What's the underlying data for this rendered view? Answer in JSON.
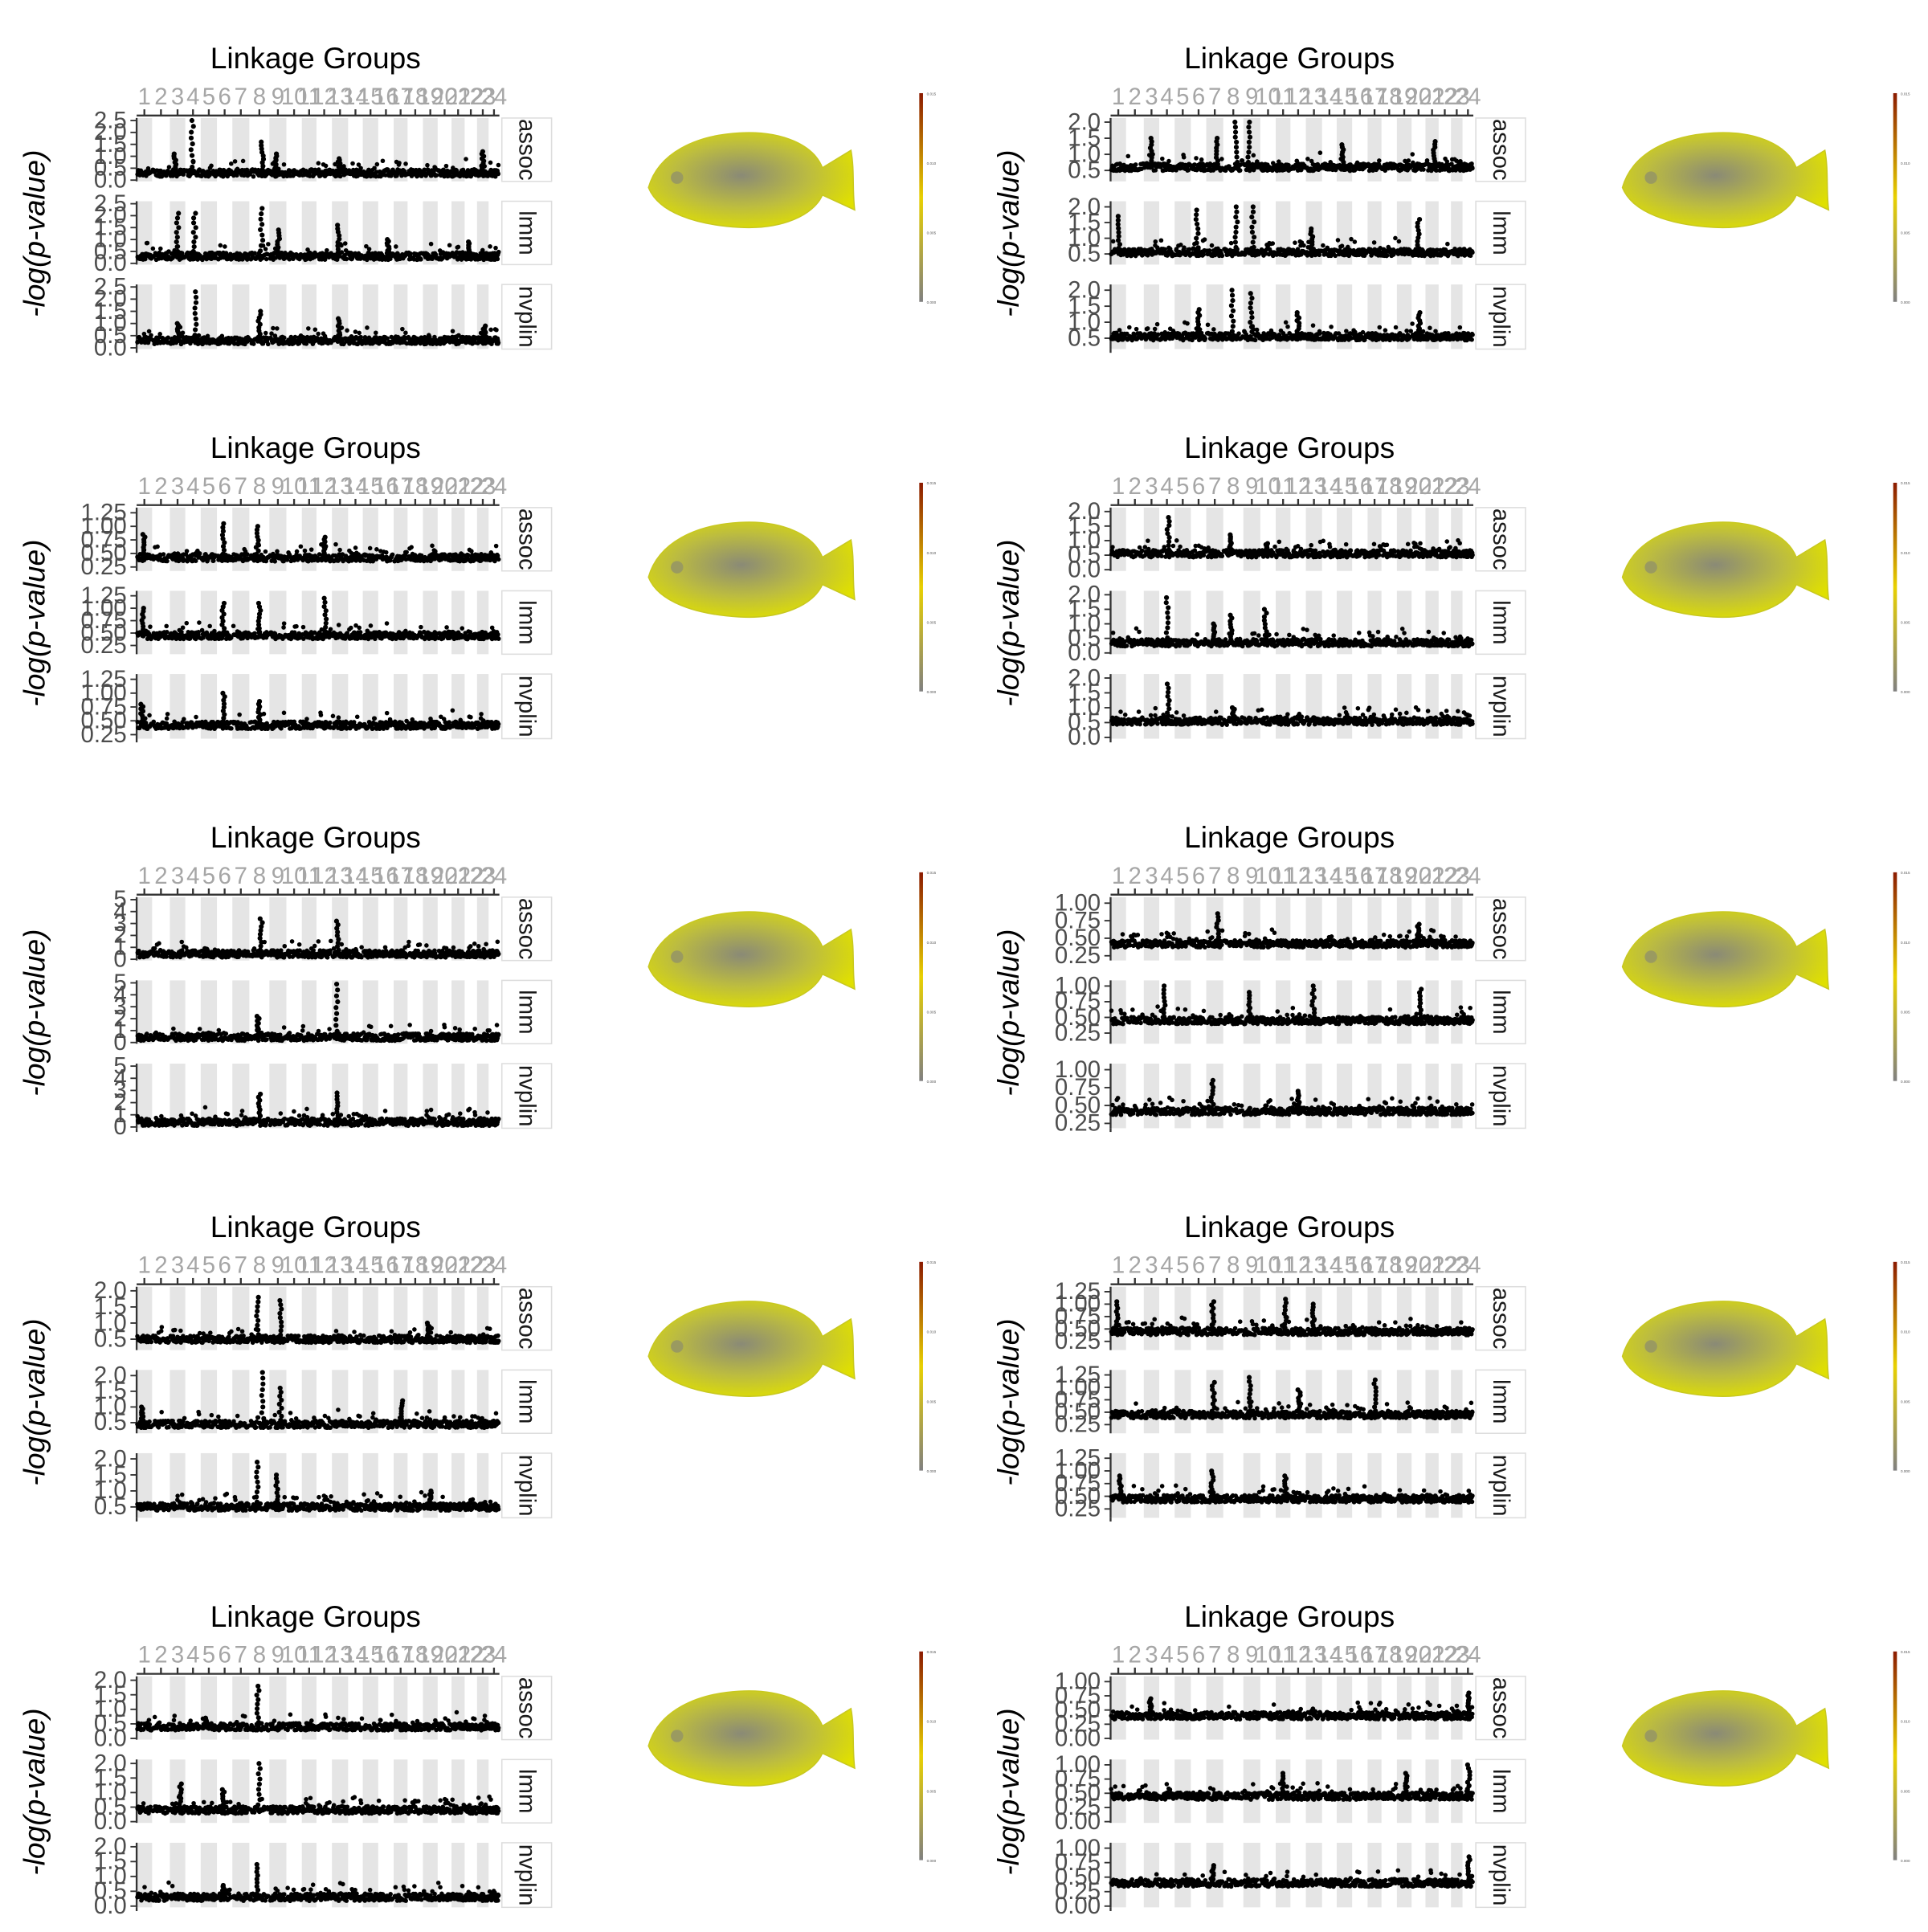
{
  "figure": {
    "x_title": "Linkage Groups",
    "y_title": "-log(p-value)",
    "linkage_groups": [
      "1",
      "2",
      "3",
      "4",
      "5",
      "6",
      "7",
      "8",
      "9",
      "10",
      "11",
      "12",
      "13",
      "14",
      "15",
      "16",
      "17",
      "18",
      "19",
      "20",
      "21",
      "22",
      "23",
      "24"
    ],
    "facets": [
      "assoc",
      "lmm",
      "nvplin"
    ]
  },
  "colors": {
    "points": "#000000",
    "stripe": "#e5e5e5",
    "tick_label": "#a6a6a6",
    "axis_text": "#4d4d4d",
    "fish_yellow": "#e0e000",
    "fish_gray": "#8a8a76",
    "scale_low": "#808080",
    "scale_mid": "#e8d000",
    "scale_high": "#8b1a00"
  },
  "colorbar_ticks": [
    "0.015",
    "0.010",
    "0.005",
    "0.000"
  ],
  "chart_data": [
    {
      "type": "scatter",
      "panel": "1",
      "facets": [
        {
          "name": "assoc",
          "ylim": [
            0,
            2.5
          ],
          "yticks": [
            "0.0",
            "0.5",
            "1.0",
            "1.5",
            "2.0",
            "2.5"
          ],
          "baseline": 0.3,
          "peaks": [
            {
              "lg": 4,
              "max": 2.5
            },
            {
              "lg": 8,
              "max": 1.6
            },
            {
              "lg": 13,
              "max": 0.9
            },
            {
              "lg": 3,
              "max": 1.1
            },
            {
              "lg": 9,
              "max": 1.1
            },
            {
              "lg": 23,
              "max": 1.2
            }
          ]
        },
        {
          "name": "lmm",
          "ylim": [
            0,
            2.5
          ],
          "yticks": [
            "0.0",
            "0.5",
            "1.0",
            "1.5",
            "2.0",
            "2.5"
          ],
          "baseline": 0.3,
          "peaks": [
            {
              "lg": 3,
              "max": 2.1
            },
            {
              "lg": 4,
              "max": 2.1
            },
            {
              "lg": 8,
              "max": 2.3
            },
            {
              "lg": 9,
              "max": 1.4
            },
            {
              "lg": 13,
              "max": 1.6
            },
            {
              "lg": 16,
              "max": 1.0
            },
            {
              "lg": 22,
              "max": 0.9
            }
          ]
        },
        {
          "name": "nvplin",
          "ylim": [
            0,
            2.5
          ],
          "yticks": [
            "0.0",
            "0.5",
            "1.0",
            "1.5",
            "2.0",
            "2.5"
          ],
          "baseline": 0.3,
          "peaks": [
            {
              "lg": 4,
              "max": 2.3
            },
            {
              "lg": 8,
              "max": 1.5
            },
            {
              "lg": 13,
              "max": 1.2
            },
            {
              "lg": 3,
              "max": 1.0
            },
            {
              "lg": 23,
              "max": 0.9
            }
          ]
        }
      ]
    },
    {
      "type": "scatter",
      "panel": "2",
      "facets": [
        {
          "name": "assoc",
          "ylim": [
            0.2,
            2.05
          ],
          "yticks": [
            "0.5",
            "1.0",
            "1.5",
            "2.0"
          ],
          "baseline": 0.6,
          "peaks": [
            {
              "lg": 8,
              "max": 2.0
            },
            {
              "lg": 9,
              "max": 2.0
            },
            {
              "lg": 3,
              "max": 1.5
            },
            {
              "lg": 7,
              "max": 1.5
            },
            {
              "lg": 15,
              "max": 1.3
            },
            {
              "lg": 21,
              "max": 1.4
            }
          ]
        },
        {
          "name": "lmm",
          "ylim": [
            0.2,
            2.1
          ],
          "yticks": [
            "0.5",
            "1.0",
            "1.5",
            "2.0"
          ],
          "baseline": 0.55,
          "peaks": [
            {
              "lg": 8,
              "max": 2.0
            },
            {
              "lg": 9,
              "max": 2.0
            },
            {
              "lg": 1,
              "max": 1.7
            },
            {
              "lg": 6,
              "max": 1.9
            },
            {
              "lg": 20,
              "max": 1.6
            },
            {
              "lg": 13,
              "max": 1.3
            }
          ]
        },
        {
          "name": "nvplin",
          "ylim": [
            0.2,
            2.1
          ],
          "yticks": [
            "0.5",
            "1.0",
            "1.5",
            "2.0"
          ],
          "baseline": 0.55,
          "peaks": [
            {
              "lg": 8,
              "max": 2.0
            },
            {
              "lg": 9,
              "max": 1.9
            },
            {
              "lg": 6,
              "max": 1.4
            },
            {
              "lg": 12,
              "max": 1.3
            },
            {
              "lg": 20,
              "max": 1.3
            }
          ]
        }
      ]
    },
    {
      "type": "scatter",
      "panel": "3",
      "facets": [
        {
          "name": "assoc",
          "ylim": [
            0.2,
            1.3
          ],
          "yticks": [
            "0.25",
            "0.50",
            "0.75",
            "1.00",
            "1.25"
          ],
          "baseline": 0.42,
          "peaks": [
            {
              "lg": 6,
              "max": 1.05
            },
            {
              "lg": 8,
              "max": 1.0
            },
            {
              "lg": 12,
              "max": 0.8
            },
            {
              "lg": 1,
              "max": 0.85
            }
          ]
        },
        {
          "name": "lmm",
          "ylim": [
            0.1,
            1.3
          ],
          "yticks": [
            "0.25",
            "0.50",
            "0.75",
            "1.00",
            "1.25"
          ],
          "baseline": 0.45,
          "peaks": [
            {
              "lg": 6,
              "max": 1.1
            },
            {
              "lg": 8,
              "max": 1.1
            },
            {
              "lg": 12,
              "max": 1.2
            },
            {
              "lg": 1,
              "max": 1.0
            }
          ]
        },
        {
          "name": "nvplin",
          "ylim": [
            0.2,
            1.3
          ],
          "yticks": [
            "0.25",
            "0.50",
            "0.75",
            "1.00",
            "1.25"
          ],
          "baseline": 0.42,
          "peaks": [
            {
              "lg": 6,
              "max": 1.0
            },
            {
              "lg": 8,
              "max": 0.85
            },
            {
              "lg": 1,
              "max": 0.8
            }
          ]
        }
      ]
    },
    {
      "type": "scatter",
      "panel": "4",
      "facets": [
        {
          "name": "assoc",
          "ylim": [
            0,
            2.05
          ],
          "yticks": [
            "0.0",
            "0.5",
            "1.0",
            "1.5",
            "2.0"
          ],
          "baseline": 0.55,
          "peaks": [
            {
              "lg": 4,
              "max": 1.8
            },
            {
              "lg": 8,
              "max": 1.2
            },
            {
              "lg": 10,
              "max": 0.9
            }
          ]
        },
        {
          "name": "lmm",
          "ylim": [
            0,
            2.05
          ],
          "yticks": [
            "0.0",
            "0.5",
            "1.0",
            "1.5",
            "2.0"
          ],
          "baseline": 0.35,
          "peaks": [
            {
              "lg": 4,
              "max": 1.9
            },
            {
              "lg": 8,
              "max": 1.3
            },
            {
              "lg": 10,
              "max": 1.5
            },
            {
              "lg": 7,
              "max": 1.0
            }
          ]
        },
        {
          "name": "nvplin",
          "ylim": [
            0,
            2.05
          ],
          "yticks": [
            "0.0",
            "0.5",
            "1.0",
            "1.5",
            "2.0"
          ],
          "baseline": 0.55,
          "peaks": [
            {
              "lg": 4,
              "max": 1.8
            },
            {
              "lg": 8,
              "max": 1.0
            }
          ]
        }
      ]
    },
    {
      "type": "scatter",
      "panel": "5",
      "facets": [
        {
          "name": "assoc",
          "ylim": [
            0,
            5
          ],
          "yticks": [
            "0",
            "1",
            "2",
            "3",
            "4",
            "5"
          ],
          "baseline": 0.45,
          "peaks": [
            {
              "lg": 13,
              "max": 3.2
            },
            {
              "lg": 8,
              "max": 3.4
            },
            {
              "lg": 5,
              "max": 0.9
            }
          ]
        },
        {
          "name": "lmm",
          "ylim": [
            0,
            5
          ],
          "yticks": [
            "0",
            "1",
            "2",
            "3",
            "4",
            "5"
          ],
          "baseline": 0.45,
          "peaks": [
            {
              "lg": 13,
              "max": 4.9
            },
            {
              "lg": 8,
              "max": 2.2
            },
            {
              "lg": 5,
              "max": 0.8
            }
          ]
        },
        {
          "name": "nvplin",
          "ylim": [
            0,
            5
          ],
          "yticks": [
            "0",
            "1",
            "2",
            "3",
            "4",
            "5"
          ],
          "baseline": 0.4,
          "peaks": [
            {
              "lg": 13,
              "max": 2.8
            },
            {
              "lg": 8,
              "max": 2.7
            }
          ]
        }
      ]
    },
    {
      "type": "scatter",
      "panel": "6",
      "facets": [
        {
          "name": "assoc",
          "ylim": [
            0.2,
            1.05
          ],
          "yticks": [
            "0.25",
            "0.50",
            "0.75",
            "1.00"
          ],
          "baseline": 0.42,
          "peaks": [
            {
              "lg": 7,
              "max": 0.85
            },
            {
              "lg": 20,
              "max": 0.7
            }
          ]
        },
        {
          "name": "lmm",
          "ylim": [
            0.1,
            1.05
          ],
          "yticks": [
            "0.25",
            "0.50",
            "0.75",
            "1.00"
          ],
          "baseline": 0.45,
          "peaks": [
            {
              "lg": 4,
              "max": 1.0
            },
            {
              "lg": 13,
              "max": 1.0
            },
            {
              "lg": 20,
              "max": 0.95
            },
            {
              "lg": 9,
              "max": 0.9
            }
          ]
        },
        {
          "name": "nvplin",
          "ylim": [
            0.2,
            1.05
          ],
          "yticks": [
            "0.25",
            "0.50",
            "0.75",
            "1.00"
          ],
          "baseline": 0.42,
          "peaks": [
            {
              "lg": 7,
              "max": 0.85
            },
            {
              "lg": 12,
              "max": 0.7
            }
          ]
        }
      ]
    },
    {
      "type": "scatter",
      "panel": "7",
      "facets": [
        {
          "name": "assoc",
          "ylim": [
            0.2,
            2.05
          ],
          "yticks": [
            "0.5",
            "1.0",
            "1.5",
            "2.0"
          ],
          "baseline": 0.5,
          "peaks": [
            {
              "lg": 8,
              "max": 1.8
            },
            {
              "lg": 9,
              "max": 1.7
            },
            {
              "lg": 19,
              "max": 1.0
            }
          ]
        },
        {
          "name": "lmm",
          "ylim": [
            0.2,
            2.1
          ],
          "yticks": [
            "0.5",
            "1.0",
            "1.5",
            "2.0"
          ],
          "baseline": 0.45,
          "peaks": [
            {
              "lg": 8,
              "max": 2.1
            },
            {
              "lg": 9,
              "max": 1.6
            },
            {
              "lg": 17,
              "max": 1.2
            },
            {
              "lg": 1,
              "max": 1.0
            }
          ]
        },
        {
          "name": "nvplin",
          "ylim": [
            0.2,
            2.1
          ],
          "yticks": [
            "0.5",
            "1.0",
            "1.5",
            "2.0"
          ],
          "baseline": 0.5,
          "peaks": [
            {
              "lg": 8,
              "max": 1.9
            },
            {
              "lg": 9,
              "max": 1.5
            },
            {
              "lg": 19,
              "max": 1.0
            }
          ]
        }
      ]
    },
    {
      "type": "scatter",
      "panel": "8",
      "facets": [
        {
          "name": "assoc",
          "ylim": [
            0.1,
            1.3
          ],
          "yticks": [
            "0.25",
            "0.50",
            "0.75",
            "1.00",
            "1.25"
          ],
          "baseline": 0.45,
          "peaks": [
            {
              "lg": 1,
              "max": 1.05
            },
            {
              "lg": 7,
              "max": 1.05
            },
            {
              "lg": 11,
              "max": 1.1
            },
            {
              "lg": 13,
              "max": 1.0
            }
          ]
        },
        {
          "name": "lmm",
          "ylim": [
            0.1,
            1.3
          ],
          "yticks": [
            "0.25",
            "0.50",
            "0.75",
            "1.00",
            "1.25"
          ],
          "baseline": 0.45,
          "peaks": [
            {
              "lg": 7,
              "max": 1.1
            },
            {
              "lg": 9,
              "max": 1.2
            },
            {
              "lg": 17,
              "max": 1.15
            },
            {
              "lg": 12,
              "max": 0.95
            }
          ]
        },
        {
          "name": "nvplin",
          "ylim": [
            0.1,
            1.3
          ],
          "yticks": [
            "0.25",
            "0.50",
            "0.75",
            "1.00",
            "1.25"
          ],
          "baseline": 0.45,
          "peaks": [
            {
              "lg": 7,
              "max": 1.0
            },
            {
              "lg": 1,
              "max": 0.9
            },
            {
              "lg": 11,
              "max": 0.9
            }
          ]
        }
      ]
    },
    {
      "type": "scatter",
      "panel": "9",
      "facets": [
        {
          "name": "assoc",
          "ylim": [
            0,
            2.05
          ],
          "yticks": [
            "0.0",
            "0.5",
            "1.0",
            "1.5",
            "2.0"
          ],
          "baseline": 0.4,
          "peaks": [
            {
              "lg": 8,
              "max": 1.8
            },
            {
              "lg": 5,
              "max": 0.7
            }
          ]
        },
        {
          "name": "lmm",
          "ylim": [
            0,
            2.05
          ],
          "yticks": [
            "0.0",
            "0.5",
            "1.0",
            "1.5",
            "2.0"
          ],
          "baseline": 0.4,
          "peaks": [
            {
              "lg": 8,
              "max": 2.0
            },
            {
              "lg": 3,
              "max": 1.3
            },
            {
              "lg": 6,
              "max": 1.1
            }
          ]
        },
        {
          "name": "nvplin",
          "ylim": [
            0,
            2.05
          ],
          "yticks": [
            "0.0",
            "0.5",
            "1.0",
            "1.5",
            "2.0"
          ],
          "baseline": 0.3,
          "peaks": [
            {
              "lg": 8,
              "max": 1.4
            },
            {
              "lg": 6,
              "max": 0.7
            }
          ]
        }
      ]
    },
    {
      "type": "scatter",
      "panel": "10",
      "facets": [
        {
          "name": "assoc",
          "ylim": [
            0,
            1.05
          ],
          "yticks": [
            "0.00",
            "0.25",
            "0.50",
            "0.75",
            "1.00"
          ],
          "baseline": 0.4,
          "peaks": [
            {
              "lg": 24,
              "max": 0.8
            },
            {
              "lg": 3,
              "max": 0.7
            }
          ]
        },
        {
          "name": "lmm",
          "ylim": [
            0,
            1.05
          ],
          "yticks": [
            "0.00",
            "0.25",
            "0.50",
            "0.75",
            "1.00"
          ],
          "baseline": 0.45,
          "peaks": [
            {
              "lg": 24,
              "max": 1.0
            },
            {
              "lg": 11,
              "max": 0.85
            },
            {
              "lg": 19,
              "max": 0.85
            }
          ]
        },
        {
          "name": "nvplin",
          "ylim": [
            0,
            1.05
          ],
          "yticks": [
            "0.00",
            "0.25",
            "0.50",
            "0.75",
            "1.00"
          ],
          "baseline": 0.4,
          "peaks": [
            {
              "lg": 24,
              "max": 0.85
            },
            {
              "lg": 7,
              "max": 0.7
            }
          ]
        }
      ]
    }
  ]
}
